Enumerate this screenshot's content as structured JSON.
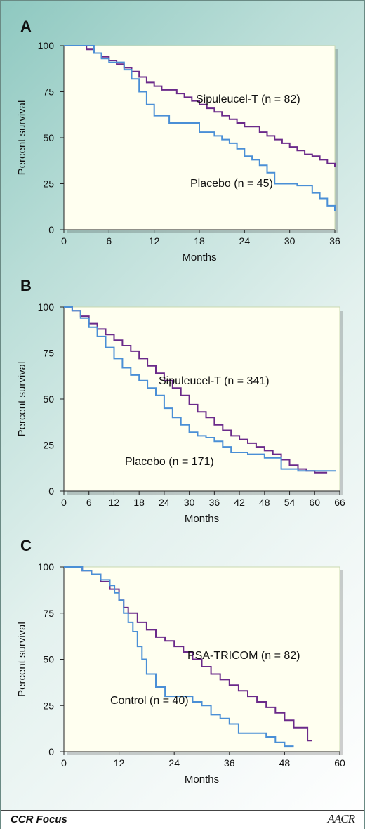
{
  "footer": {
    "left_text": "CCR Focus",
    "logo_text": "AACR"
  },
  "chart_data": [
    {
      "type": "line",
      "panel": "A",
      "title": "",
      "xlabel": "Months",
      "ylabel": "Percent survival",
      "xlim": [
        0,
        36
      ],
      "ylim": [
        0,
        100
      ],
      "xticks": [
        0,
        6,
        12,
        18,
        24,
        30,
        36
      ],
      "yticks": [
        0,
        25,
        50,
        75,
        100
      ],
      "grid": false,
      "step": true,
      "series": [
        {
          "name": "Sipuleucel-T (n = 82)",
          "color": "#6b2a8a",
          "x": [
            0,
            3,
            4,
            5,
            6,
            7,
            8,
            9,
            10,
            11,
            12,
            13,
            15,
            16,
            17,
            18,
            19,
            20,
            21,
            22,
            23,
            24,
            26,
            27,
            28,
            29,
            30,
            31,
            32,
            33,
            34,
            35,
            36
          ],
          "y": [
            100,
            98,
            96,
            94,
            92,
            90,
            88,
            86,
            83,
            80,
            78,
            76,
            74,
            72,
            70,
            68,
            66,
            64,
            62,
            60,
            58,
            56,
            53,
            51,
            49,
            47,
            45,
            43,
            41,
            40,
            38,
            36,
            34
          ]
        },
        {
          "name": "Placebo (n = 45)",
          "color": "#4a8fd6",
          "x": [
            0,
            4,
            5,
            6,
            8,
            9,
            10,
            11,
            12,
            14,
            18,
            20,
            21,
            22,
            23,
            24,
            25,
            26,
            27,
            28,
            31,
            33,
            34,
            35,
            36
          ],
          "y": [
            100,
            96,
            93,
            91,
            87,
            82,
            75,
            68,
            62,
            58,
            53,
            51,
            49,
            47,
            44,
            40,
            38,
            35,
            31,
            25,
            24,
            20,
            17,
            13,
            10
          ]
        }
      ]
    },
    {
      "type": "line",
      "panel": "B",
      "title": "",
      "xlabel": "Months",
      "ylabel": "Percent survival",
      "xlim": [
        0,
        66
      ],
      "ylim": [
        0,
        100
      ],
      "xticks": [
        0,
        6,
        12,
        18,
        24,
        30,
        36,
        42,
        48,
        54,
        60,
        66
      ],
      "yticks": [
        0,
        25,
        50,
        75,
        100
      ],
      "grid": false,
      "step": true,
      "series": [
        {
          "name": "Sipuleucel-T (n = 341)",
          "color": "#6b2a8a",
          "x": [
            0,
            2,
            4,
            6,
            8,
            10,
            12,
            14,
            16,
            18,
            20,
            22,
            24,
            26,
            28,
            30,
            32,
            34,
            36,
            38,
            40,
            42,
            44,
            46,
            48,
            50,
            52,
            54,
            56,
            58,
            60,
            62,
            63
          ],
          "y": [
            100,
            98,
            95,
            91,
            88,
            85,
            82,
            79,
            76,
            72,
            68,
            64,
            60,
            56,
            52,
            47,
            43,
            40,
            36,
            33,
            30,
            28,
            26,
            24,
            22,
            20,
            17,
            14,
            12,
            11,
            10,
            10,
            10
          ]
        },
        {
          "name": "Placebo (n = 171)",
          "color": "#4a8fd6",
          "x": [
            0,
            2,
            4,
            6,
            8,
            10,
            12,
            14,
            16,
            18,
            20,
            22,
            24,
            26,
            28,
            30,
            32,
            34,
            36,
            38,
            40,
            44,
            48,
            52,
            56,
            60,
            65
          ],
          "y": [
            100,
            98,
            94,
            89,
            84,
            78,
            72,
            67,
            63,
            60,
            56,
            52,
            45,
            40,
            36,
            32,
            30,
            29,
            27,
            24,
            21,
            20,
            18,
            12,
            11,
            11,
            11
          ]
        }
      ]
    },
    {
      "type": "line",
      "panel": "C",
      "title": "",
      "xlabel": "Months",
      "ylabel": "Percent survival",
      "xlim": [
        0,
        60
      ],
      "ylim": [
        0,
        100
      ],
      "xticks": [
        0,
        12,
        24,
        36,
        48,
        60
      ],
      "yticks": [
        0,
        25,
        50,
        75,
        100
      ],
      "grid": false,
      "step": true,
      "series": [
        {
          "name": "PSA-TRICOM (n = 82)",
          "color": "#6b2a8a",
          "x": [
            0,
            4,
            6,
            8,
            10,
            12,
            13,
            14,
            16,
            18,
            20,
            22,
            24,
            26,
            28,
            30,
            32,
            34,
            36,
            38,
            40,
            42,
            44,
            46,
            48,
            50,
            52,
            53,
            54
          ],
          "y": [
            100,
            98,
            96,
            92,
            88,
            82,
            78,
            75,
            70,
            66,
            62,
            60,
            57,
            54,
            50,
            46,
            42,
            39,
            36,
            33,
            30,
            27,
            24,
            21,
            17,
            13,
            13,
            6,
            6
          ]
        },
        {
          "name": "Control (n = 40)",
          "color": "#4a8fd6",
          "x": [
            0,
            4,
            6,
            8,
            10,
            11,
            12,
            13,
            14,
            15,
            16,
            17,
            18,
            20,
            22,
            24,
            28,
            30,
            32,
            34,
            36,
            38,
            42,
            44,
            46,
            48,
            50
          ],
          "y": [
            100,
            98,
            96,
            93,
            90,
            86,
            82,
            75,
            70,
            65,
            57,
            50,
            42,
            35,
            30,
            30,
            27,
            25,
            20,
            18,
            15,
            10,
            10,
            8,
            5,
            3,
            3
          ]
        }
      ]
    }
  ],
  "panels": [
    {
      "letter": "A",
      "y_tick_labels": [
        "100",
        "75",
        "50",
        "25",
        "0"
      ],
      "x_tick_labels": [
        "0",
        "6",
        "12",
        "18",
        "24",
        "30",
        "36"
      ],
      "series_labels": [
        "Sipuleucel-T (n = 82)",
        "Placebo (n = 45)"
      ],
      "xlabel": "Months",
      "ylabel": "Percent survival"
    },
    {
      "letter": "B",
      "y_tick_labels": [
        "100",
        "75",
        "50",
        "25",
        "0"
      ],
      "x_tick_labels": [
        "0",
        "6",
        "12",
        "18",
        "24",
        "30",
        "36",
        "42",
        "48",
        "54",
        "60",
        "66"
      ],
      "series_labels": [
        "Sipuleucel-T (n = 341)",
        "Placebo (n = 171)"
      ],
      "xlabel": "Months",
      "ylabel": "Percent survival"
    },
    {
      "letter": "C",
      "y_tick_labels": [
        "100",
        "75",
        "50",
        "25",
        "0"
      ],
      "x_tick_labels": [
        "0",
        "12",
        "24",
        "36",
        "48",
        "60"
      ],
      "series_labels": [
        "PSA-TRICOM (n = 82)",
        "Control (n = 40)"
      ],
      "xlabel": "Months",
      "ylabel": "Percent survival"
    }
  ]
}
